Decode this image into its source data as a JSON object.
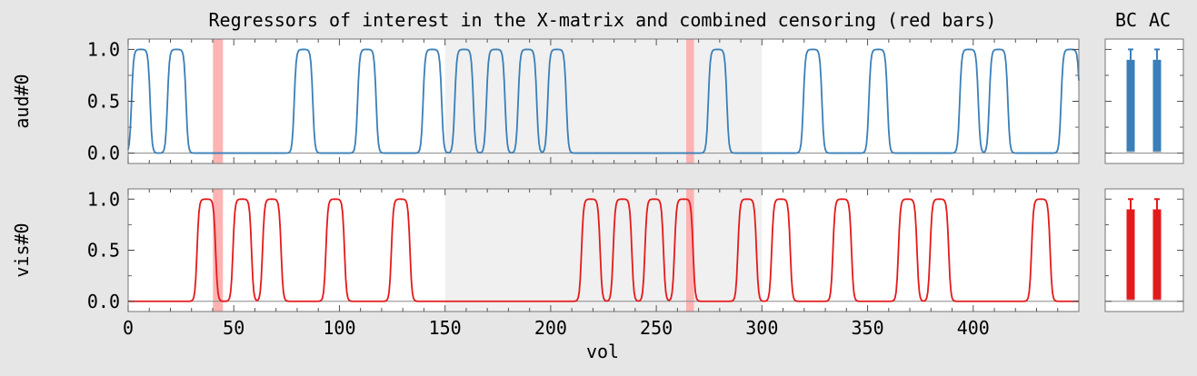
{
  "chart_data": {
    "type": "line",
    "title": "Regressors of interest in the X-matrix and combined censoring (red bars)",
    "xlabel": "vol",
    "xlim": [
      0,
      450
    ],
    "ylim": [
      -0.1,
      1.1
    ],
    "x_ticks": [
      0,
      50,
      100,
      150,
      200,
      250,
      300,
      350,
      400
    ],
    "y_ticks": [
      0.0,
      0.5,
      1.0
    ],
    "y_tick_labels": [
      "0.0",
      "0.5",
      "1.0"
    ],
    "x_tick_labels": [
      "0",
      "50",
      "100",
      "150",
      "200",
      "250",
      "300",
      "350",
      "400"
    ],
    "run_bands": [
      [
        150,
        300
      ]
    ],
    "censored_volumes": [
      [
        41,
        44
      ],
      [
        265,
        267
      ]
    ],
    "series": [
      {
        "name": "aud#0",
        "color": "#3a7fb8",
        "block_starts": [
          0,
          17,
          77,
          107,
          138,
          153,
          168,
          183,
          197,
          273,
          318,
          349,
          392,
          406,
          440
        ],
        "block_length": 12
      },
      {
        "name": "vis#0",
        "color": "#e31a1c",
        "block_starts": [
          31,
          48,
          62,
          92,
          123,
          213,
          228,
          243,
          257,
          287,
          303,
          332,
          363,
          378,
          426
        ],
        "block_length": 12
      }
    ],
    "stats_panel": {
      "labels": [
        "BC",
        "AC"
      ],
      "ylim": [
        -0.1,
        1.1
      ],
      "values": [
        {
          "series": "aud#0",
          "bars": [
            0.9,
            0.9
          ],
          "errors": [
            0.1,
            0.1
          ]
        },
        {
          "series": "vis#0",
          "bars": [
            0.9,
            0.9
          ],
          "errors": [
            0.1,
            0.1
          ]
        }
      ]
    }
  }
}
